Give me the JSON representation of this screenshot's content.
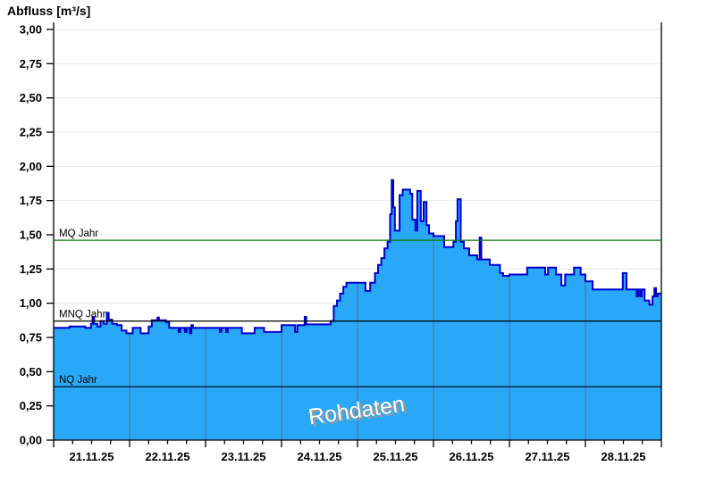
{
  "chart_data": {
    "type": "area",
    "title": "Abfluss [m³/s]",
    "xlabel": "",
    "ylabel": "Abfluss [m³/s]",
    "ylim": [
      0,
      3
    ],
    "ytick_step": 0.25,
    "ytick_labels": [
      "0,00",
      "0,25",
      "0,50",
      "0,75",
      "1,00",
      "1,25",
      "1,50",
      "1,75",
      "2,00",
      "2,25",
      "2,50",
      "2,75",
      "3,00"
    ],
    "x_days": [
      "21.11.25",
      "22.11.25",
      "23.11.25",
      "24.11.25",
      "25.11.25",
      "26.11.25",
      "27.11.25",
      "28.11.25"
    ],
    "x_total_hours": 192,
    "x_minor_tick_hours": 6,
    "grid": {
      "horizontal": true,
      "vertical_day_lines": true,
      "legend": "none"
    },
    "watermark": "Rohdaten",
    "reference_lines": [
      {
        "name": "mq-jahr",
        "label": "MQ Jahr",
        "value": 1.46,
        "color": "#0c7a0c"
      },
      {
        "name": "mnq-jahr",
        "label": "MNQ Jahr",
        "value": 0.87,
        "color": "#000000"
      },
      {
        "name": "nq-jahr",
        "label": "NQ Jahr",
        "value": 0.39,
        "color": "#000000"
      }
    ],
    "series": [
      {
        "name": "Abfluss Rohdaten",
        "unit": "m³/s",
        "step": "after",
        "points": [
          [
            0,
            0.82
          ],
          [
            5,
            0.83
          ],
          [
            10,
            0.82
          ],
          [
            11.8,
            0.85
          ],
          [
            12.3,
            0.9
          ],
          [
            12.8,
            0.85
          ],
          [
            13.8,
            0.83
          ],
          [
            14.8,
            0.87
          ],
          [
            15.8,
            0.85
          ],
          [
            16.8,
            0.93
          ],
          [
            17.4,
            0.88
          ],
          [
            18.5,
            0.85
          ],
          [
            20,
            0.84
          ],
          [
            21.5,
            0.8
          ],
          [
            23,
            0.78
          ],
          [
            25,
            0.82
          ],
          [
            27.5,
            0.78
          ],
          [
            30,
            0.83
          ],
          [
            31,
            0.875
          ],
          [
            32.8,
            0.895
          ],
          [
            33.3,
            0.875
          ],
          [
            35.5,
            0.86
          ],
          [
            36.5,
            0.82
          ],
          [
            39.5,
            0.79
          ],
          [
            40,
            0.82
          ],
          [
            41.5,
            0.79
          ],
          [
            42,
            0.82
          ],
          [
            43,
            0.78
          ],
          [
            43.5,
            0.84
          ],
          [
            44,
            0.82
          ],
          [
            48,
            0.82
          ],
          [
            52.5,
            0.79
          ],
          [
            53,
            0.82
          ],
          [
            54.5,
            0.79
          ],
          [
            55,
            0.82
          ],
          [
            59.5,
            0.78
          ],
          [
            63.5,
            0.82
          ],
          [
            66.5,
            0.79
          ],
          [
            72,
            0.84
          ],
          [
            76.3,
            0.79
          ],
          [
            77,
            0.84
          ],
          [
            79.3,
            0.9
          ],
          [
            79.8,
            0.845
          ],
          [
            87.5,
            0.87
          ],
          [
            88.5,
            0.98
          ],
          [
            89.5,
            1.02
          ],
          [
            90.5,
            1.07
          ],
          [
            91.5,
            1.12
          ],
          [
            92.5,
            1.15
          ],
          [
            98.5,
            1.09
          ],
          [
            100,
            1.15
          ],
          [
            101.5,
            1.22
          ],
          [
            102.5,
            1.28
          ],
          [
            103.5,
            1.33
          ],
          [
            104.5,
            1.4
          ],
          [
            105.5,
            1.45
          ],
          [
            106.3,
            1.65
          ],
          [
            106.8,
            1.9
          ],
          [
            107.3,
            1.7
          ],
          [
            107.8,
            1.53
          ],
          [
            109.3,
            1.79
          ],
          [
            110.3,
            1.83
          ],
          [
            112.6,
            1.8
          ],
          [
            113.3,
            1.61
          ],
          [
            114.3,
            1.53
          ],
          [
            114.9,
            1.82
          ],
          [
            116,
            1.6
          ],
          [
            116.9,
            1.74
          ],
          [
            117.8,
            1.57
          ],
          [
            118.6,
            1.51
          ],
          [
            120,
            1.49
          ],
          [
            123.4,
            1.41
          ],
          [
            126.3,
            1.45
          ],
          [
            127.1,
            1.6
          ],
          [
            127.6,
            1.76
          ],
          [
            128.6,
            1.45
          ],
          [
            129.6,
            1.4
          ],
          [
            131.3,
            1.35
          ],
          [
            133.8,
            1.32
          ],
          [
            134.6,
            1.48
          ],
          [
            135.1,
            1.32
          ],
          [
            137.8,
            1.28
          ],
          [
            141,
            1.22
          ],
          [
            142,
            1.2
          ],
          [
            144,
            1.21
          ],
          [
            149.6,
            1.26
          ],
          [
            155.3,
            1.21
          ],
          [
            156.2,
            1.26
          ],
          [
            158.7,
            1.21
          ],
          [
            160.4,
            1.13
          ],
          [
            161.6,
            1.21
          ],
          [
            164.4,
            1.26
          ],
          [
            166.5,
            1.21
          ],
          [
            168,
            1.16
          ],
          [
            170.3,
            1.1
          ],
          [
            179.8,
            1.22
          ],
          [
            181,
            1.1
          ],
          [
            184.2,
            1.05
          ],
          [
            184.7,
            1.1
          ],
          [
            185.3,
            1.05
          ],
          [
            185.8,
            1.1
          ],
          [
            186.7,
            1.02
          ],
          [
            188.2,
            0.99
          ],
          [
            189.2,
            1.05
          ],
          [
            189.8,
            1.11
          ],
          [
            190.3,
            1.05
          ],
          [
            190.8,
            1.07
          ]
        ]
      }
    ]
  },
  "colors": {
    "background": "#ffffff",
    "area_fill": "#29a8f8",
    "series_line": "#0000cd",
    "h_grid": "#e8e8e8",
    "v_day_grid": "#4e6e8e",
    "axis": "#000000",
    "mq_green": "#0c7a0c",
    "watermark_fill": "#ffffff",
    "watermark_shadow": "#9a9a9a",
    "label_text": "#000000"
  }
}
